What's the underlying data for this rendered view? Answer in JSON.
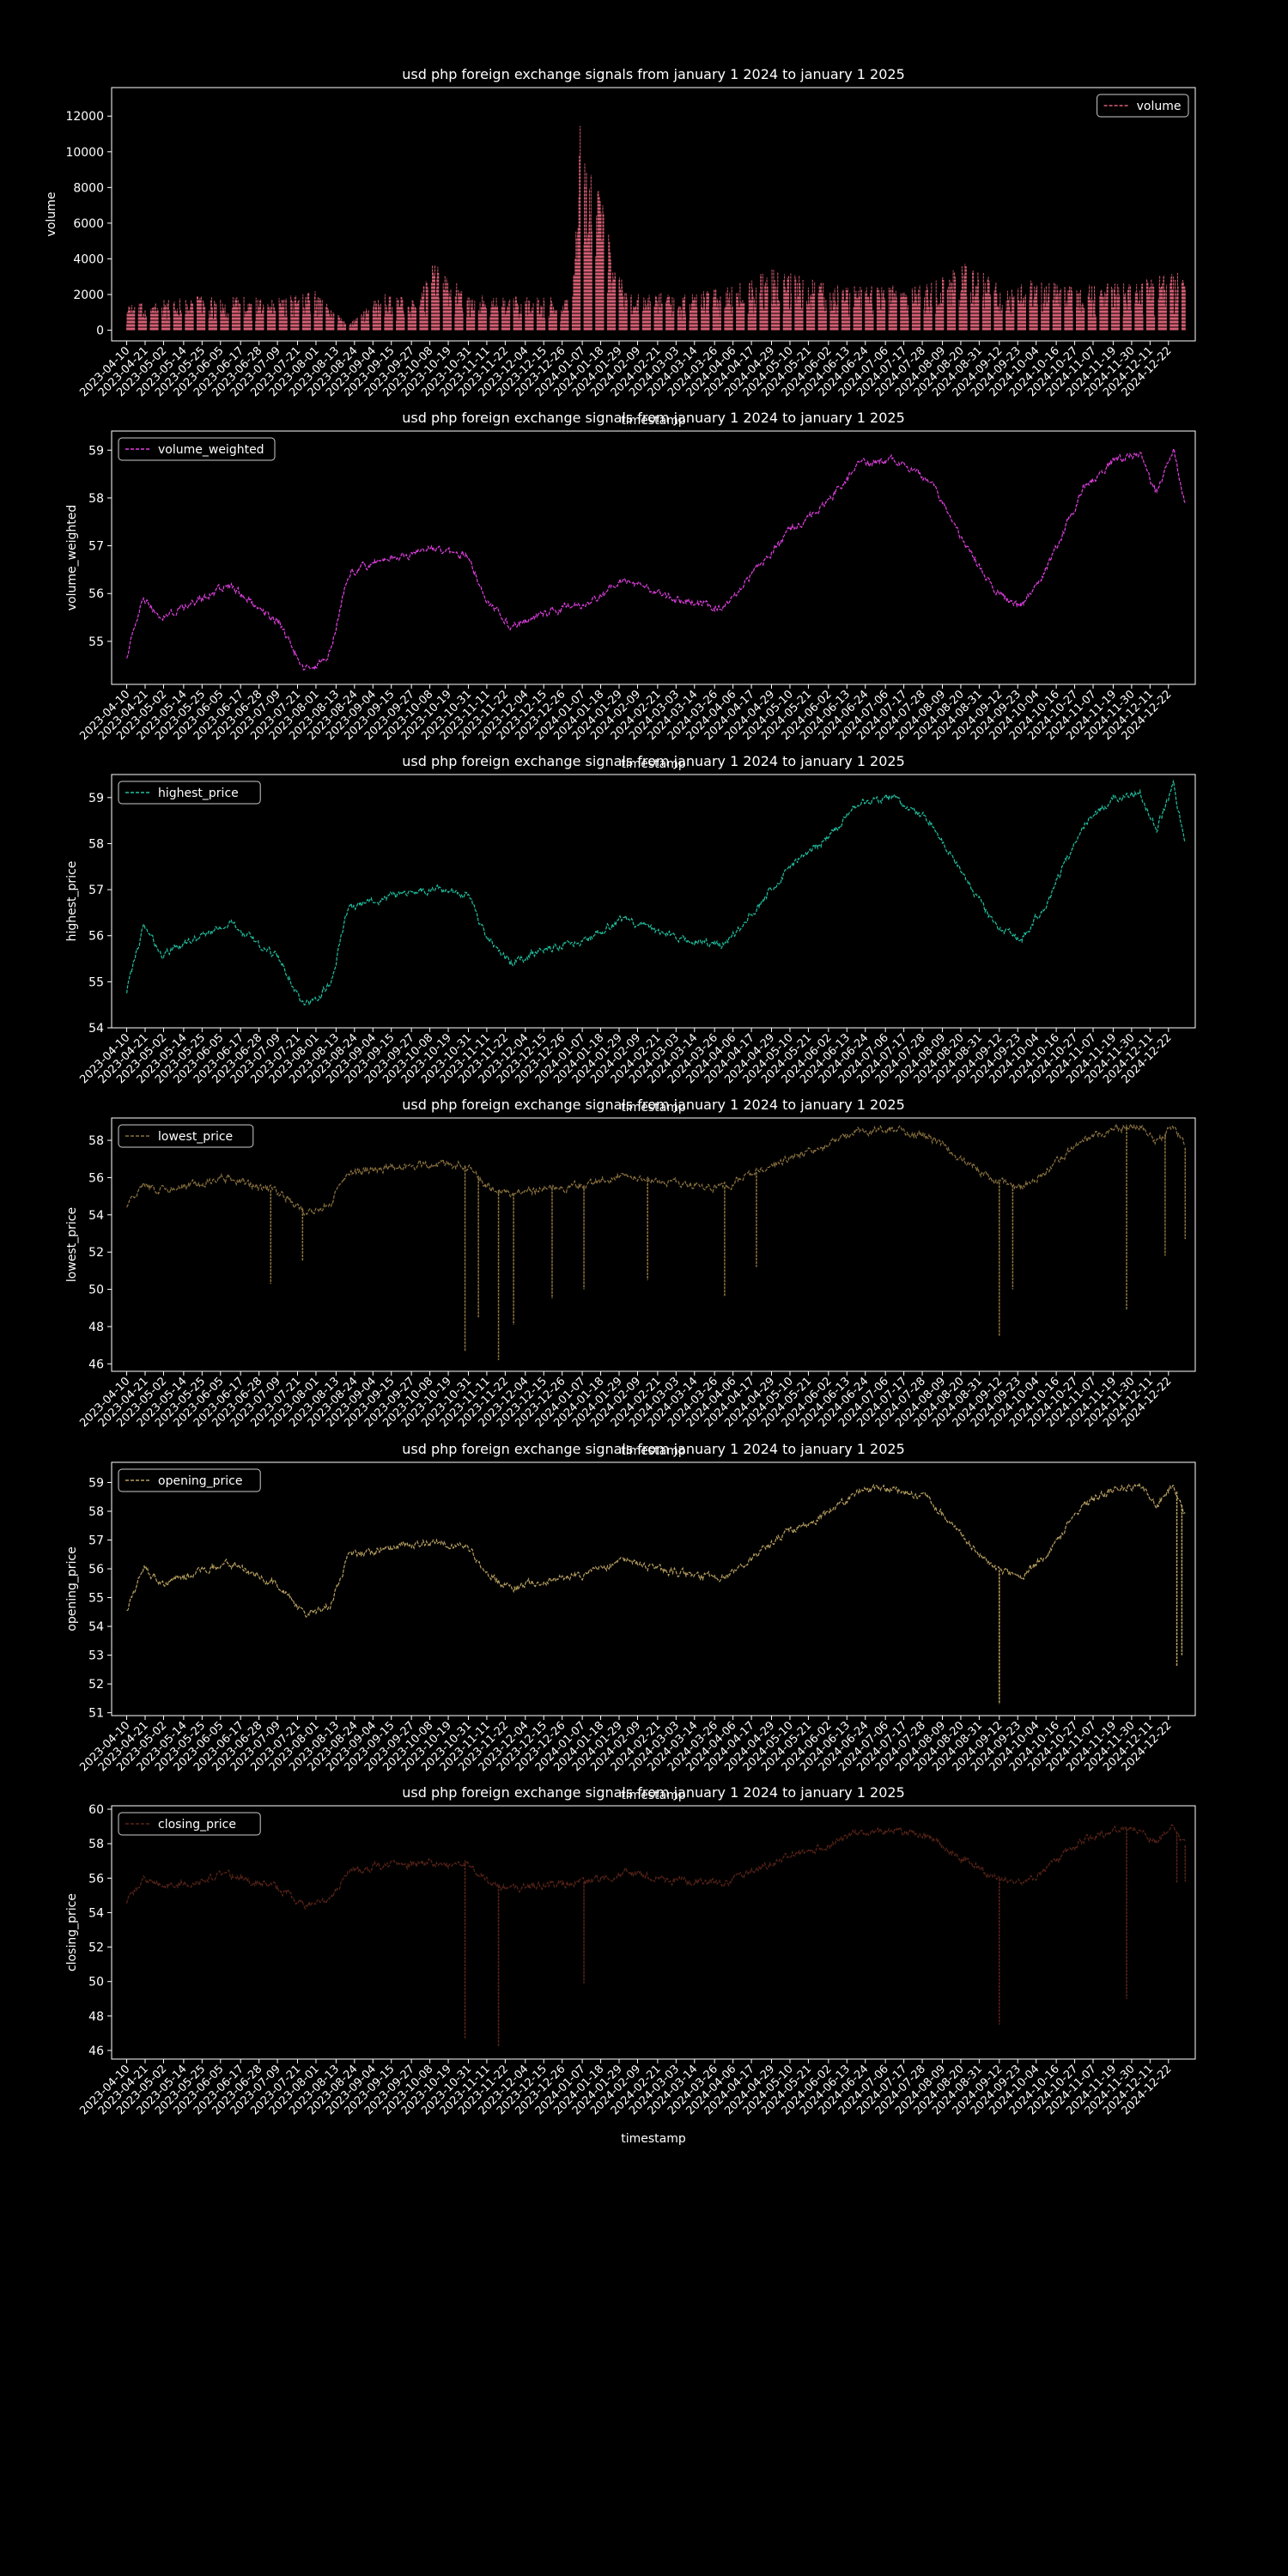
{
  "figure": {
    "background": "#000000",
    "foreground": "#ffffff",
    "x_ticks": [
      "2023-04-10",
      "2023-04-21",
      "2023-05-02",
      "2023-05-14",
      "2023-05-25",
      "2023-06-05",
      "2023-06-17",
      "2023-06-28",
      "2023-07-09",
      "2023-07-21",
      "2023-08-01",
      "2023-08-13",
      "2023-08-24",
      "2023-09-04",
      "2023-09-15",
      "2023-09-27",
      "2023-10-08",
      "2023-10-19",
      "2023-10-31",
      "2023-11-11",
      "2023-11-22",
      "2023-12-04",
      "2023-12-15",
      "2023-12-26",
      "2024-01-07",
      "2024-01-18",
      "2024-01-29",
      "2024-02-09",
      "2024-02-21",
      "2024-03-03",
      "2024-03-14",
      "2024-03-26",
      "2024-04-06",
      "2024-04-17",
      "2024-04-29",
      "2024-05-10",
      "2024-05-21",
      "2024-06-02",
      "2024-06-13",
      "2024-06-24",
      "2024-07-06",
      "2024-07-17",
      "2024-07-28",
      "2024-08-09",
      "2024-08-20",
      "2024-08-31",
      "2024-09-12",
      "2024-09-23",
      "2024-10-04",
      "2024-10-16",
      "2024-10-27",
      "2024-11-07",
      "2024-11-19",
      "2024-11-30",
      "2024-12-11",
      "2024-12-22"
    ],
    "xlim": [
      "2023-04-01",
      "2025-01-07"
    ],
    "data_start": "2023-04-10",
    "data_end": "2025-01-01"
  },
  "chart_data": [
    {
      "type": "line",
      "title": "usd php foreign exchange signals from january 1 2024 to january 1 2025",
      "xlabel": "timestamp",
      "ylabel": "volume",
      "legend": "top-right",
      "grid": false,
      "color": "#d75f73",
      "series": [
        {
          "name": "volume",
          "x": [
            "2023-04-10",
            "2023-05-01",
            "2023-06-01",
            "2023-07-01",
            "2023-08-01",
            "2023-08-20",
            "2023-09-10",
            "2023-10-01",
            "2023-10-10",
            "2023-11-01",
            "2023-12-01",
            "2024-01-01",
            "2024-01-06",
            "2024-02-01",
            "2024-03-01",
            "2024-04-01",
            "2024-05-01",
            "2024-06-01",
            "2024-07-01",
            "2024-08-01",
            "2024-08-25",
            "2024-09-15",
            "2024-10-01",
            "2024-11-01",
            "2024-12-01",
            "2025-01-01"
          ],
          "y": [
            1400,
            1700,
            2000,
            1800,
            2200,
            300,
            2100,
            1700,
            3900,
            2000,
            1900,
            1800,
            12800,
            2300,
            2000,
            2400,
            3500,
            2700,
            2500,
            2600,
            3900,
            2400,
            2800,
            2600,
            2800,
            3300
          ]
        }
      ],
      "yticks": [
        0,
        2000,
        4000,
        6000,
        8000,
        10000,
        12000
      ],
      "ylim": [
        -600,
        13600
      ]
    },
    {
      "type": "line",
      "title": "usd php foreign exchange signals from january 1 2024 to january 1 2025",
      "xlabel": "timestamp",
      "ylabel": "volume_weighted",
      "legend": "top-left",
      "grid": false,
      "color": "#e040e0",
      "series": [
        {
          "name": "volume_weighted",
          "x": [
            "2023-04-10",
            "2023-04-20",
            "2023-05-01",
            "2023-05-20",
            "2023-06-10",
            "2023-06-25",
            "2023-07-10",
            "2023-07-25",
            "2023-08-01",
            "2023-08-10",
            "2023-08-20",
            "2023-09-01",
            "2023-09-20",
            "2023-10-10",
            "2023-10-31",
            "2023-11-10",
            "2023-11-25",
            "2023-12-15",
            "2024-01-10",
            "2024-02-01",
            "2024-02-20",
            "2024-03-10",
            "2024-04-01",
            "2024-04-20",
            "2024-05-10",
            "2024-06-01",
            "2024-06-20",
            "2024-07-10",
            "2024-08-01",
            "2024-08-20",
            "2024-09-10",
            "2024-09-25",
            "2024-10-10",
            "2024-11-01",
            "2024-11-20",
            "2024-12-05",
            "2024-12-15",
            "2024-12-25",
            "2025-01-01"
          ],
          "y": [
            54.7,
            55.9,
            55.5,
            55.8,
            56.2,
            55.8,
            55.4,
            54.4,
            54.5,
            54.8,
            56.4,
            56.6,
            56.8,
            56.9,
            56.8,
            55.9,
            55.3,
            55.6,
            55.8,
            56.3,
            56.0,
            55.8,
            55.7,
            56.5,
            57.3,
            57.9,
            58.7,
            58.8,
            58.4,
            57.2,
            56.0,
            55.7,
            56.5,
            58.2,
            58.8,
            58.9,
            58.1,
            59.0,
            57.9
          ]
        }
      ],
      "yticks": [
        55,
        56,
        57,
        58,
        59
      ],
      "ylim": [
        54.1,
        59.4
      ]
    },
    {
      "type": "line",
      "title": "usd php foreign exchange signals from january 1 2024 to january 1 2025",
      "xlabel": "timestamp",
      "ylabel": "highest_price",
      "legend": "top-left",
      "grid": false,
      "color": "#20c0a0",
      "series": [
        {
          "name": "highest_price",
          "x": [
            "2023-04-10",
            "2023-04-20",
            "2023-05-01",
            "2023-05-20",
            "2023-06-10",
            "2023-06-25",
            "2023-07-10",
            "2023-07-25",
            "2023-08-01",
            "2023-08-10",
            "2023-08-20",
            "2023-09-01",
            "2023-09-20",
            "2023-10-10",
            "2023-10-31",
            "2023-11-10",
            "2023-11-25",
            "2023-12-15",
            "2024-01-10",
            "2024-02-01",
            "2024-02-20",
            "2024-03-10",
            "2024-04-01",
            "2024-04-20",
            "2024-05-10",
            "2024-06-01",
            "2024-06-20",
            "2024-07-10",
            "2024-08-01",
            "2024-08-20",
            "2024-09-10",
            "2024-09-25",
            "2024-10-10",
            "2024-11-01",
            "2024-11-20",
            "2024-12-05",
            "2024-12-15",
            "2024-12-25",
            "2025-01-01"
          ],
          "y": [
            54.8,
            56.2,
            55.6,
            55.9,
            56.3,
            55.9,
            55.5,
            54.5,
            54.6,
            55.0,
            56.6,
            56.7,
            56.9,
            57.0,
            56.9,
            56.0,
            55.4,
            55.7,
            55.9,
            56.4,
            56.1,
            55.9,
            55.8,
            56.6,
            57.5,
            58.1,
            58.9,
            59.0,
            58.5,
            57.4,
            56.2,
            55.9,
            56.7,
            58.4,
            59.0,
            59.1,
            58.3,
            59.3,
            58.0
          ]
        }
      ],
      "yticks": [
        54,
        55,
        56,
        57,
        58,
        59
      ],
      "ylim": [
        54.0,
        59.5
      ]
    },
    {
      "type": "line",
      "title": "usd php foreign exchange signals from january 1 2024 to january 1 2025",
      "xlabel": "timestamp",
      "ylabel": "lowest_price",
      "legend": "top-left",
      "grid": false,
      "color": "#8c7340",
      "series": [
        {
          "name": "lowest_price",
          "x": [
            "2023-04-10",
            "2023-04-20",
            "2023-05-01",
            "2023-05-20",
            "2023-06-10",
            "2023-06-25",
            "2023-07-10",
            "2023-07-25",
            "2023-08-01",
            "2023-08-10",
            "2023-08-20",
            "2023-09-01",
            "2023-09-20",
            "2023-10-10",
            "2023-10-31",
            "2023-11-10",
            "2023-11-25",
            "2023-12-15",
            "2024-01-10",
            "2024-02-01",
            "2024-02-20",
            "2024-03-10",
            "2024-04-01",
            "2024-04-20",
            "2024-05-10",
            "2024-06-01",
            "2024-06-20",
            "2024-07-10",
            "2024-08-01",
            "2024-08-20",
            "2024-09-10",
            "2024-09-25",
            "2024-10-10",
            "2024-11-01",
            "2024-11-20",
            "2024-12-05",
            "2024-12-15",
            "2024-12-25",
            "2025-01-01"
          ],
          "y": [
            54.5,
            55.6,
            55.3,
            55.6,
            56.0,
            55.6,
            55.2,
            54.2,
            54.3,
            54.6,
            56.2,
            56.4,
            56.6,
            56.7,
            56.6,
            55.6,
            55.1,
            55.4,
            55.6,
            56.1,
            55.8,
            55.6,
            55.5,
            56.3,
            57.1,
            57.7,
            58.5,
            58.6,
            58.2,
            57.0,
            55.8,
            55.5,
            56.3,
            58.0,
            58.6,
            58.7,
            57.9,
            58.8,
            57.6
          ]
        }
      ],
      "spikes": [
        [
          "2023-07-05",
          50.3
        ],
        [
          "2023-07-24",
          51.5
        ],
        [
          "2023-10-29",
          46.7
        ],
        [
          "2023-11-06",
          48.5
        ],
        [
          "2023-11-18",
          46.2
        ],
        [
          "2023-11-27",
          48.1
        ],
        [
          "2023-12-20",
          49.5
        ],
        [
          "2024-01-08",
          50.0
        ],
        [
          "2024-02-15",
          50.5
        ],
        [
          "2024-04-01",
          49.6
        ],
        [
          "2024-04-20",
          51.2
        ],
        [
          "2024-09-12",
          47.5
        ],
        [
          "2024-09-20",
          50.0
        ],
        [
          "2024-11-27",
          48.9
        ],
        [
          "2024-12-20",
          51.8
        ],
        [
          "2025-01-01",
          52.7
        ]
      ],
      "yticks": [
        46,
        48,
        50,
        52,
        54,
        56,
        58
      ],
      "ylim": [
        45.6,
        59.2
      ]
    },
    {
      "type": "line",
      "title": "usd php foreign exchange signals from january 1 2024 to january 1 2025",
      "xlabel": "timestamp",
      "ylabel": "opening_price",
      "legend": "top-left",
      "grid": false,
      "color": "#b8a060",
      "series": [
        {
          "name": "opening_price",
          "x": [
            "2023-04-10",
            "2023-04-20",
            "2023-05-01",
            "2023-05-20",
            "2023-06-10",
            "2023-06-25",
            "2023-07-10",
            "2023-07-25",
            "2023-08-01",
            "2023-08-10",
            "2023-08-20",
            "2023-09-01",
            "2023-09-20",
            "2023-10-10",
            "2023-10-31",
            "2023-11-10",
            "2023-11-25",
            "2023-12-15",
            "2024-01-10",
            "2024-02-01",
            "2024-02-20",
            "2024-03-10",
            "2024-04-01",
            "2024-04-20",
            "2024-05-10",
            "2024-06-01",
            "2024-06-20",
            "2024-07-10",
            "2024-08-01",
            "2024-08-20",
            "2024-09-10",
            "2024-09-25",
            "2024-10-10",
            "2024-11-01",
            "2024-11-20",
            "2024-12-05",
            "2024-12-15",
            "2024-12-25",
            "2025-01-01"
          ],
          "y": [
            54.6,
            56.0,
            55.5,
            55.8,
            56.2,
            55.8,
            55.4,
            54.4,
            54.5,
            54.8,
            56.4,
            56.6,
            56.8,
            56.9,
            56.8,
            55.9,
            55.3,
            55.6,
            55.8,
            56.3,
            56.0,
            55.8,
            55.7,
            56.5,
            57.3,
            57.9,
            58.7,
            58.8,
            58.4,
            57.2,
            56.0,
            55.7,
            56.5,
            58.2,
            58.8,
            58.9,
            58.1,
            59.0,
            57.9
          ]
        }
      ],
      "spikes": [
        [
          "2024-09-12",
          51.3
        ],
        [
          "2024-12-27",
          52.6
        ],
        [
          "2024-12-30",
          53.0
        ]
      ],
      "yticks": [
        51,
        52,
        53,
        54,
        55,
        56,
        57,
        58,
        59
      ],
      "ylim": [
        50.9,
        59.7
      ]
    },
    {
      "type": "line",
      "title": "usd php foreign exchange signals from january 1 2024 to january 1 2025",
      "xlabel": "timestamp",
      "ylabel": "closing_price",
      "legend": "top-left",
      "grid": false,
      "color": "#5a2418",
      "series": [
        {
          "name": "closing_price",
          "x": [
            "2023-04-10",
            "2023-04-20",
            "2023-05-01",
            "2023-05-20",
            "2023-06-10",
            "2023-06-25",
            "2023-07-10",
            "2023-07-25",
            "2023-08-01",
            "2023-08-10",
            "2023-08-20",
            "2023-09-01",
            "2023-09-20",
            "2023-10-10",
            "2023-10-31",
            "2023-11-10",
            "2023-11-25",
            "2023-12-15",
            "2024-01-10",
            "2024-02-01",
            "2024-02-20",
            "2024-03-10",
            "2024-04-01",
            "2024-04-20",
            "2024-05-10",
            "2024-06-01",
            "2024-06-20",
            "2024-07-10",
            "2024-08-01",
            "2024-08-20",
            "2024-09-10",
            "2024-09-25",
            "2024-10-10",
            "2024-11-01",
            "2024-11-20",
            "2024-12-05",
            "2024-12-15",
            "2024-12-25",
            "2025-01-01"
          ],
          "y": [
            54.6,
            56.0,
            55.5,
            55.8,
            56.2,
            55.8,
            55.4,
            54.4,
            54.5,
            54.8,
            56.4,
            56.6,
            56.8,
            56.9,
            56.8,
            55.9,
            55.3,
            55.6,
            55.8,
            56.3,
            56.0,
            55.8,
            55.7,
            56.5,
            57.3,
            57.9,
            58.7,
            58.8,
            58.4,
            57.2,
            56.0,
            55.7,
            56.5,
            58.2,
            58.8,
            58.9,
            58.1,
            59.0,
            57.9
          ]
        }
      ],
      "spikes": [
        [
          "2023-10-29",
          46.7
        ],
        [
          "2023-11-18",
          46.2
        ],
        [
          "2024-01-08",
          49.9
        ],
        [
          "2024-09-12",
          47.5
        ],
        [
          "2024-11-27",
          49.0
        ],
        [
          "2024-12-27",
          55.7
        ],
        [
          "2025-01-01",
          55.8
        ]
      ],
      "yticks": [
        46,
        48,
        50,
        52,
        54,
        56,
        58,
        60
      ],
      "ylim": [
        45.5,
        60.2
      ]
    }
  ]
}
